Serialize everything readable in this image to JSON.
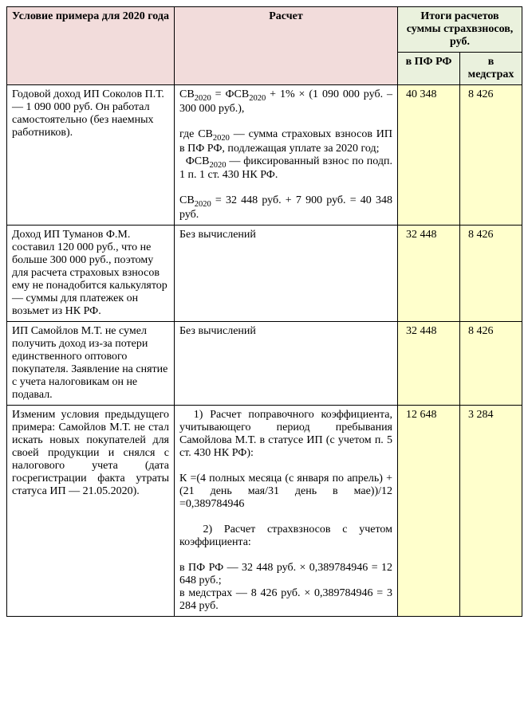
{
  "table": {
    "background_color": "#ffffff",
    "border_color": "#000000",
    "font_family": "Times New Roman",
    "font_size_pt": 11,
    "header_bg_left": "#f2dcdb",
    "header_bg_right": "#eaf1dd",
    "data_bg_right": "#ffffcc",
    "columns": {
      "c1": "Условие примера для 2020 года",
      "c2": "Расчет",
      "c3_group": "Итоги расчетов суммы страхвзносов, руб.",
      "c3": "в ПФ РФ",
      "c4": "в медстрах"
    },
    "rows": [
      {
        "cond": "Годовой доход ИП Соколов П.Т. — 1 090 000 руб. Он работал самостоятельно (без наемных работников).",
        "calc_html": "СВ<sub>2020</sub> = ФСВ<sub>2020</sub> + 1% × (1 090 000 руб. – 300 000 руб.),<br><br>где СВ<sub>2020</sub> — сумма страховых взносов ИП в ПФ РФ, подлежащая уплате за 2020 год;<br>&nbsp;&nbsp;ФСВ<sub>2020</sub> — фиксированный взнос по подп. 1 п. 1 ст. 430 НК РФ.<br><br>СВ<sub>2020</sub> = 32 448 руб. + 7  900 руб. = 40 348 руб.",
        "pf": "40 348",
        "med": "8 426"
      },
      {
        "cond": "Доход ИП Туманов Ф.М. составил 120 000 руб., что  не больше 300 000 руб., поэтому для расчета страховых взносов ему не понадобится калькулятор — суммы для платежек он возьмет из НК РФ.",
        "calc_html": "Без вычислений",
        "pf": "32 448",
        "med": "8 426"
      },
      {
        "cond": "ИП Самойлов М.Т. не сумел получить доход из-за потери единственного оптового покупателя. Заявление на снятие с учета налоговикам  он не подавал.",
        "calc_html": "Без вычислений",
        "pf": "32 448",
        "med": "8 426"
      },
      {
        "cond_html": "Изменим условия предыдущего примера: Самойлов М.Т. не стал искать новых покупателей для своей продукции и снялся с налогового учета (дата госрегистрации факта утраты статуса ИП — 21.05.2020).",
        "calc_html": "&nbsp;&nbsp;1) Расчет поправочного коэффициента, учитывающего период пребывания Самойлова М.Т. в статусе ИП (с учетом п. 5 ст. 430 НК РФ):<br><br>К =(4 полных месяца (с января по апрель) +(21 день мая/31  день в мае))/12 =0,389784946<br><br>&nbsp;&nbsp;2) Расчет страхвзносов с учетом коэффициента:<br><br>в ПФ РФ — 32 448 руб. × 0,389784946 =  12 648  руб.;<br>в медстрах — 8 426 руб. × 0,389784946 =  3 284  руб.",
        "pf": "12 648",
        "med": "3 284"
      }
    ]
  }
}
